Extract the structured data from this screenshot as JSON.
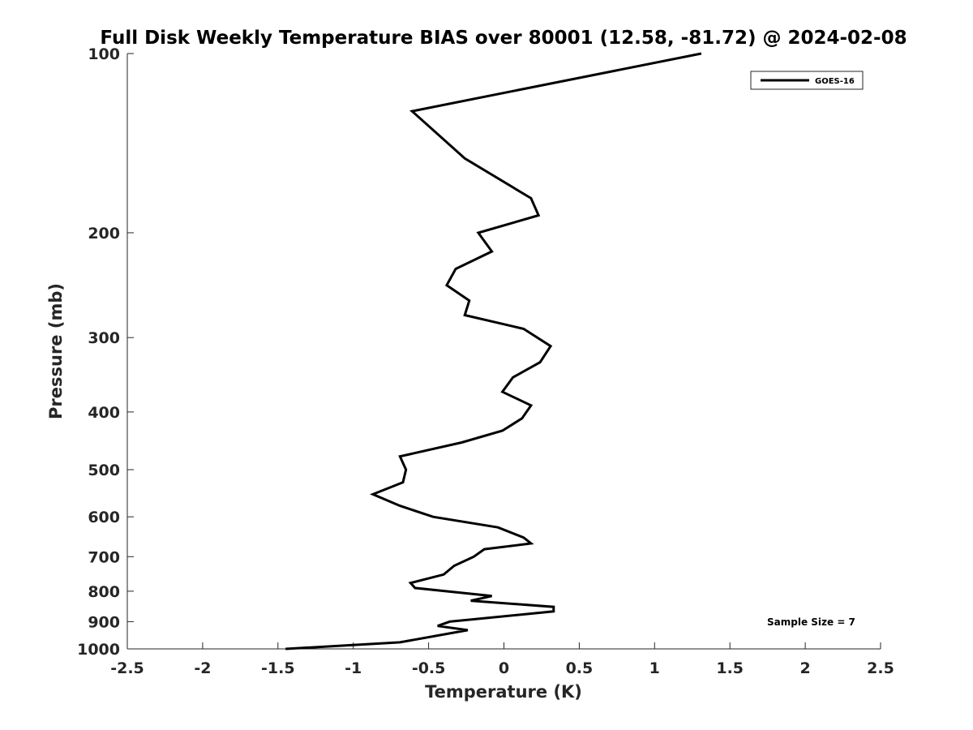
{
  "chart_data": {
    "type": "line",
    "title": "Full Disk Weekly Temperature BIAS over 80001 (12.58, -81.72) @ 2024-02-08",
    "xlabel": "Temperature (K)",
    "ylabel": "Pressure (mb)",
    "xlim": [
      -2.5,
      2.5
    ],
    "ylim": [
      100,
      1000
    ],
    "y_scale": "log",
    "y_reversed": true,
    "xticks": [
      -2.5,
      -2,
      -1.5,
      -1,
      -0.5,
      0,
      0.5,
      1,
      1.5,
      2,
      2.5
    ],
    "xtick_labels": [
      "-2.5",
      "-2",
      "-1.5",
      "-1",
      "-0.5",
      "0",
      "0.5",
      "1",
      "1.5",
      "2",
      "2.5"
    ],
    "yticks": [
      100,
      200,
      300,
      400,
      500,
      600,
      700,
      800,
      900,
      1000
    ],
    "ytick_labels": [
      "100",
      "200",
      "300",
      "400",
      "500",
      "600",
      "700",
      "800",
      "900",
      "1000"
    ],
    "grid": false,
    "legend_position": "top-right",
    "series": [
      {
        "name": "GOES-16",
        "color": "#000000",
        "points": [
          {
            "x": 1.31,
            "p": 100
          },
          {
            "x": -0.61,
            "p": 125
          },
          {
            "x": -0.26,
            "p": 150
          },
          {
            "x": 0.18,
            "p": 175
          },
          {
            "x": 0.23,
            "p": 187
          },
          {
            "x": -0.17,
            "p": 200
          },
          {
            "x": -0.08,
            "p": 215
          },
          {
            "x": -0.32,
            "p": 230
          },
          {
            "x": -0.38,
            "p": 245
          },
          {
            "x": -0.23,
            "p": 260
          },
          {
            "x": -0.26,
            "p": 275
          },
          {
            "x": 0.13,
            "p": 290
          },
          {
            "x": 0.31,
            "p": 310
          },
          {
            "x": 0.24,
            "p": 330
          },
          {
            "x": 0.06,
            "p": 350
          },
          {
            "x": -0.01,
            "p": 370
          },
          {
            "x": 0.18,
            "p": 390
          },
          {
            "x": 0.12,
            "p": 410
          },
          {
            "x": -0.01,
            "p": 430
          },
          {
            "x": -0.28,
            "p": 450
          },
          {
            "x": -0.69,
            "p": 475
          },
          {
            "x": -0.65,
            "p": 500
          },
          {
            "x": -0.67,
            "p": 525
          },
          {
            "x": -0.87,
            "p": 550
          },
          {
            "x": -0.69,
            "p": 575
          },
          {
            "x": -0.47,
            "p": 600
          },
          {
            "x": -0.04,
            "p": 625
          },
          {
            "x": 0.13,
            "p": 650
          },
          {
            "x": 0.18,
            "p": 665
          },
          {
            "x": -0.13,
            "p": 680
          },
          {
            "x": -0.2,
            "p": 700
          },
          {
            "x": -0.33,
            "p": 725
          },
          {
            "x": -0.4,
            "p": 750
          },
          {
            "x": -0.62,
            "p": 775
          },
          {
            "x": -0.59,
            "p": 790
          },
          {
            "x": -0.08,
            "p": 815
          },
          {
            "x": -0.22,
            "p": 830
          },
          {
            "x": 0.33,
            "p": 850
          },
          {
            "x": 0.33,
            "p": 865
          },
          {
            "x": -0.36,
            "p": 900
          },
          {
            "x": -0.44,
            "p": 915
          },
          {
            "x": -0.24,
            "p": 930
          },
          {
            "x": -0.69,
            "p": 975
          },
          {
            "x": -1.45,
            "p": 1000
          }
        ]
      }
    ],
    "annotations": [
      "Sample Size = 7"
    ]
  }
}
